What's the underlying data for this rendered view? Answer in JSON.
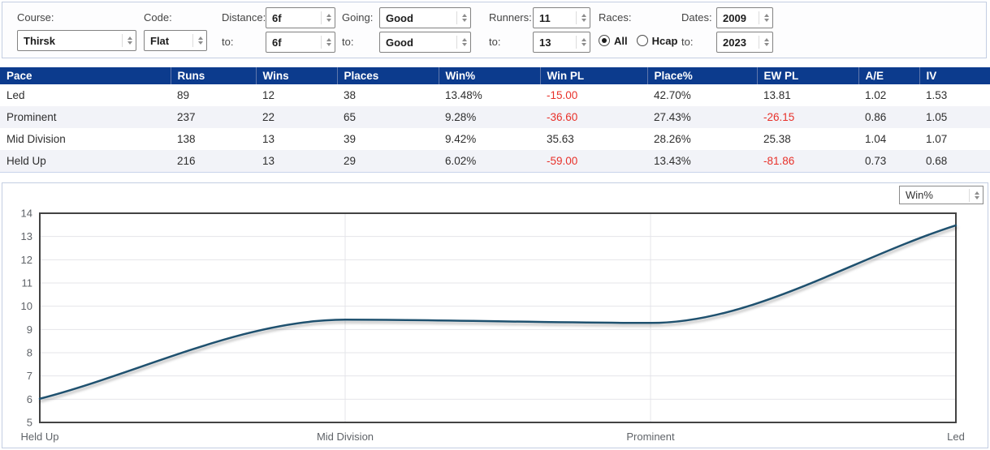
{
  "colors": {
    "header-bg": "#0c3b8d",
    "negative": "#e8312a",
    "panel-border": "#c3cee2",
    "line": "#1f516f",
    "grid": "#e4e5ea",
    "plot-border": "#434343",
    "axis-text": "#5f6368"
  },
  "filters": {
    "to_label": "to:",
    "course": {
      "label": "Course:",
      "value": "Thirsk"
    },
    "code": {
      "label": "Code:",
      "value": "Flat"
    },
    "distance": {
      "label": "Distance:",
      "from": "6f",
      "to": "6f"
    },
    "going": {
      "label": "Going:",
      "from": "Good",
      "to": "Good"
    },
    "runners": {
      "label": "Runners:",
      "from": "11",
      "to": "13"
    },
    "races": {
      "label": "Races:",
      "all_label": "All",
      "hcap_label": "Hcap",
      "selected": "All"
    },
    "dates": {
      "label": "Dates:",
      "from": "2009",
      "to": "2023"
    }
  },
  "table": {
    "columns": [
      "Pace",
      "Runs",
      "Wins",
      "Places",
      "Win%",
      "Win PL",
      "Place%",
      "EW PL",
      "A/E",
      "IV"
    ],
    "rows": [
      [
        "Led",
        "89",
        "12",
        "38",
        "13.48%",
        "-15.00",
        "42.70%",
        "13.81",
        "1.02",
        "1.53"
      ],
      [
        "Prominent",
        "237",
        "22",
        "65",
        "9.28%",
        "-36.60",
        "27.43%",
        "-26.15",
        "0.86",
        "1.05"
      ],
      [
        "Mid Division",
        "138",
        "13",
        "39",
        "9.42%",
        "35.63",
        "28.26%",
        "25.38",
        "1.04",
        "1.07"
      ],
      [
        "Held Up",
        "216",
        "13",
        "29",
        "6.02%",
        "-59.00",
        "13.43%",
        "-81.86",
        "0.73",
        "0.68"
      ]
    ]
  },
  "chart_data": {
    "type": "line",
    "categories": [
      "Held Up",
      "Mid Division",
      "Prominent",
      "Led"
    ],
    "series": [
      {
        "name": "Win%",
        "values": [
          6.02,
          9.42,
          9.28,
          13.48
        ]
      }
    ],
    "title": "",
    "xlabel": "",
    "ylabel": "",
    "ylim": [
      5,
      14
    ],
    "ytick_step": 1,
    "grid": true,
    "legend": "none",
    "metric_selector": {
      "value": "Win%"
    }
  }
}
